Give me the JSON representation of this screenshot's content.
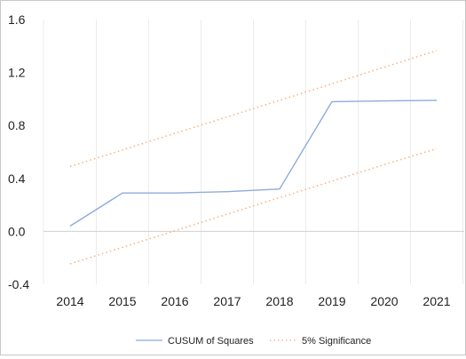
{
  "chart_data": {
    "type": "line",
    "title": "",
    "xlabel": "",
    "ylabel": "",
    "categories": [
      "2014",
      "2015",
      "2016",
      "2017",
      "2018",
      "2019",
      "2020",
      "2021"
    ],
    "ylim": [
      -0.4,
      1.6
    ],
    "yticks": [
      -0.4,
      0.0,
      0.4,
      0.8,
      1.2,
      1.6
    ],
    "ytick_labels": [
      "-0.4",
      "0.0",
      "0.4",
      "0.8",
      "1.2",
      "1.6"
    ],
    "grid": "vertical",
    "legend_position": "bottom",
    "series": [
      {
        "name": "CUSUM of Squares",
        "style": "solid",
        "color": "#8faadc",
        "values": [
          0.04,
          0.29,
          0.29,
          0.3,
          0.32,
          0.98,
          0.985,
          0.99
        ]
      },
      {
        "name": "5% Significance",
        "style": "dotted",
        "color": "#f4b183",
        "values": [
          0.49,
          0.615,
          0.74,
          0.865,
          0.99,
          1.115,
          1.24,
          1.365
        ]
      },
      {
        "name": "5% Significance",
        "style": "dotted",
        "color": "#f4b183",
        "values": [
          -0.245,
          -0.12,
          0.005,
          0.13,
          0.255,
          0.38,
          0.505,
          0.625
        ]
      }
    ]
  }
}
